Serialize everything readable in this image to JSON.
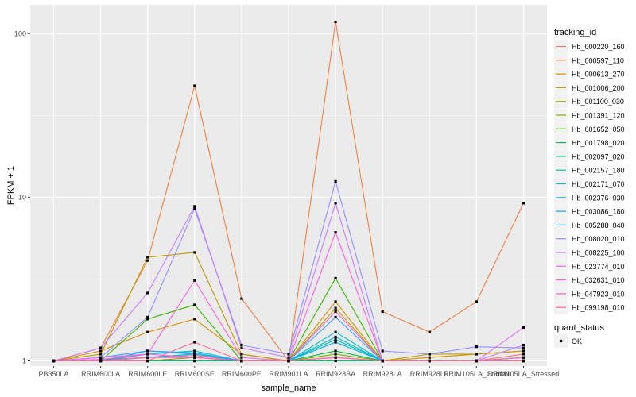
{
  "chart_data": {
    "type": "line",
    "xlabel": "sample_name",
    "ylabel": "FPKM + 1",
    "y_scale": "log10",
    "ylim": [
      0.93,
      150
    ],
    "y_ticks": [
      1,
      10,
      100
    ],
    "y_tick_labels": [
      "1",
      "10",
      "100"
    ],
    "grid": true,
    "legend_position": "right",
    "categories": [
      "PB350LA",
      "RRIM600LA",
      "RRIM600LE",
      "RRIM600SE",
      "RRIM600PE",
      "RRIM901LA",
      "RRIM928BA",
      "RRIM928LA",
      "RRIM928LE",
      "RRIM105LA_Control",
      "RRIM105LA_Stressed"
    ],
    "category_labels": [
      "PB350LA",
      "RRIM600LA",
      "RRIM600LE",
      "RRIM600SE",
      "RRIM600PE",
      "RRIM901LA",
      "RRIM928BA",
      "RRIM928LA",
      "RRIM928LE",
      "RRIM105LA_Control",
      "RRIM105LA_Stressed"
    ],
    "color_legend": {
      "title": "tracking_id",
      "marker": "line"
    },
    "shape_legend": {
      "title": "quant_status",
      "entries": [
        {
          "label": "OK",
          "marker": "square",
          "color": "#000000"
        }
      ]
    },
    "series": [
      {
        "name": "Hb_000220_160",
        "color": "#F8766D",
        "values": [
          1.0,
          1.02,
          1.05,
          1.08,
          1.0,
          1.0,
          1.05,
          1.0,
          1.0,
          1.0,
          1.1
        ]
      },
      {
        "name": "Hb_000597_110",
        "color": "#EE8044",
        "values": [
          1.0,
          1.2,
          4.1,
          48.0,
          2.4,
          1.0,
          118.0,
          2.0,
          1.5,
          2.3,
          9.2
        ]
      },
      {
        "name": "Hb_000613_270",
        "color": "#D89000",
        "values": [
          1.0,
          1.15,
          1.5,
          1.8,
          1.1,
          1.0,
          2.3,
          1.0,
          1.05,
          1.1,
          1.15
        ]
      },
      {
        "name": "Hb_001006_200",
        "color": "#C09B00",
        "values": [
          1.0,
          1.1,
          4.3,
          4.6,
          1.1,
          1.0,
          2.1,
          1.0,
          1.1,
          1.1,
          1.15
        ]
      },
      {
        "name": "Hb_001100_030",
        "color": "#A3A500",
        "values": [
          1.0,
          1.0,
          1.0,
          1.0,
          1.0,
          1.0,
          1.0,
          1.0,
          1.0,
          1.0,
          1.0
        ]
      },
      {
        "name": "Hb_001391_120",
        "color": "#7CAE00",
        "values": [
          1.0,
          1.0,
          1.0,
          1.05,
          1.0,
          1.0,
          1.1,
          1.0,
          1.0,
          1.0,
          1.05
        ]
      },
      {
        "name": "Hb_001652_050",
        "color": "#39B600",
        "values": [
          1.0,
          1.0,
          1.8,
          2.2,
          1.0,
          1.0,
          3.2,
          1.0,
          1.0,
          1.0,
          1.05
        ]
      },
      {
        "name": "Hb_001798_020",
        "color": "#00BB4E",
        "values": [
          1.0,
          1.0,
          1.0,
          1.0,
          1.0,
          1.0,
          1.15,
          1.0,
          1.0,
          1.0,
          1.0
        ]
      },
      {
        "name": "Hb_002097_020",
        "color": "#00BF7D",
        "values": [
          1.0,
          1.0,
          1.0,
          1.0,
          1.0,
          1.0,
          1.0,
          1.0,
          1.0,
          1.0,
          1.0
        ]
      },
      {
        "name": "Hb_002157_180",
        "color": "#00C1A3",
        "values": [
          1.0,
          1.0,
          1.05,
          1.1,
          1.0,
          1.0,
          1.35,
          1.0,
          1.0,
          1.0,
          1.0
        ]
      },
      {
        "name": "Hb_002171_070",
        "color": "#00BFC4",
        "values": [
          1.0,
          1.0,
          1.1,
          1.15,
          1.0,
          1.0,
          1.5,
          1.0,
          1.0,
          1.0,
          1.0
        ]
      },
      {
        "name": "Hb_002376_030",
        "color": "#00BAE0",
        "values": [
          1.0,
          1.0,
          1.05,
          1.1,
          1.0,
          1.0,
          1.4,
          1.0,
          1.0,
          1.0,
          1.0
        ]
      },
      {
        "name": "Hb_003086_180",
        "color": "#00B0F6",
        "values": [
          1.0,
          1.0,
          1.15,
          1.12,
          1.0,
          1.0,
          1.3,
          1.0,
          1.0,
          1.0,
          1.0
        ]
      },
      {
        "name": "Hb_005288_040",
        "color": "#35A2FF",
        "values": [
          1.0,
          1.05,
          1.15,
          1.1,
          1.0,
          1.0,
          1.85,
          1.0,
          1.0,
          1.0,
          1.0
        ]
      },
      {
        "name": "Hb_008020_010",
        "color": "#9590FF",
        "values": [
          1.0,
          1.05,
          1.85,
          8.5,
          1.25,
          1.1,
          12.5,
          1.15,
          1.1,
          1.22,
          1.2
        ]
      },
      {
        "name": "Hb_008225_100",
        "color": "#C77CFF",
        "values": [
          1.0,
          1.2,
          2.6,
          8.8,
          1.2,
          1.05,
          9.2,
          1.0,
          1.0,
          1.0,
          1.25
        ]
      },
      {
        "name": "Hb_023774_010",
        "color": "#E76BF3",
        "values": [
          1.0,
          1.05,
          1.1,
          1.05,
          1.0,
          1.0,
          2.0,
          1.0,
          1.0,
          1.0,
          1.6
        ]
      },
      {
        "name": "Hb_032631_010",
        "color": "#FA62DB",
        "values": [
          1.0,
          1.02,
          1.1,
          3.1,
          1.05,
          1.0,
          6.1,
          1.0,
          1.0,
          1.0,
          1.05
        ]
      },
      {
        "name": "Hb_047923_010",
        "color": "#FF62BC",
        "values": [
          1.0,
          1.0,
          1.05,
          1.05,
          1.0,
          1.0,
          1.05,
          1.0,
          1.0,
          1.0,
          1.0
        ]
      },
      {
        "name": "Hb_099198_010",
        "color": "#FF6C91",
        "values": [
          1.0,
          1.0,
          1.0,
          1.3,
          1.0,
          1.0,
          1.05,
          1.0,
          1.0,
          1.0,
          1.0
        ]
      }
    ]
  }
}
